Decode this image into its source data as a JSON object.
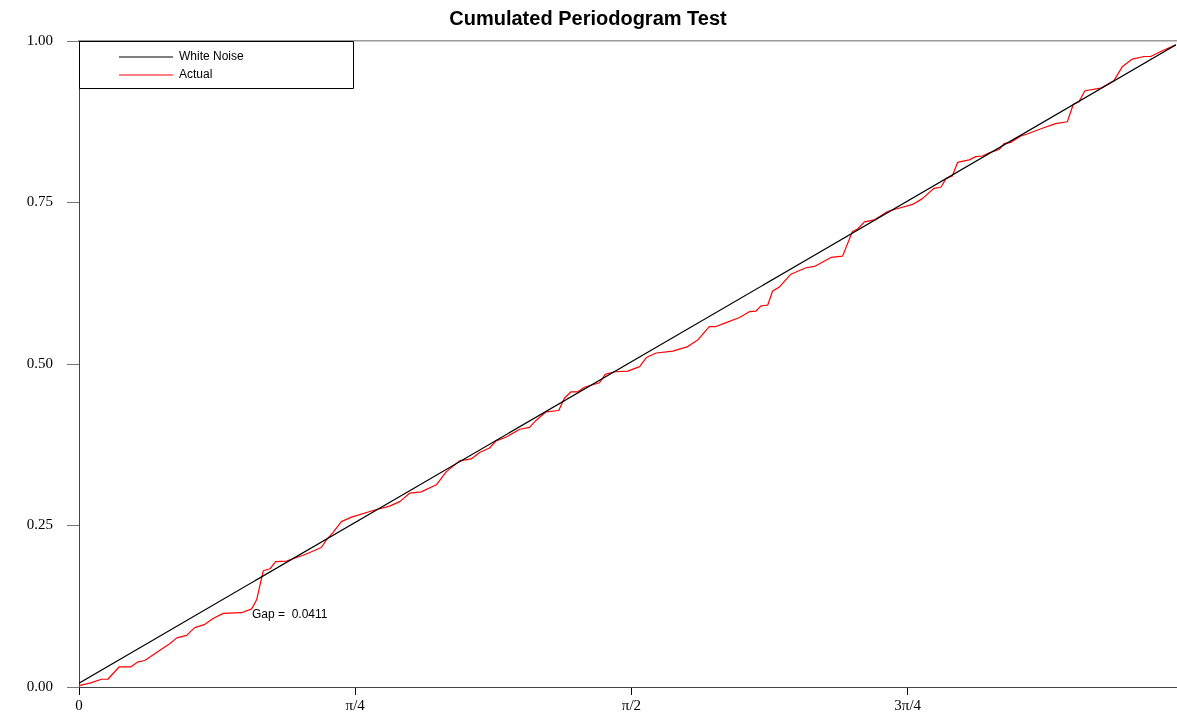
{
  "chart_data": {
    "type": "line",
    "title": "Cumulated Periodogram Test",
    "legend": "top left",
    "marker": "none",
    "line_style": "solid",
    "grid": false,
    "xlim": [
      0,
      3.119
    ],
    "ylim": [
      0,
      1
    ],
    "xticks": [
      {
        "value": 0,
        "label": "0"
      },
      {
        "value": 0.7854,
        "label": "π/4"
      },
      {
        "value": 1.5708,
        "label": "π/2"
      },
      {
        "value": 2.3562,
        "label": "3π/4"
      }
    ],
    "yticks": [
      {
        "value": 0,
        "label": "0.00"
      },
      {
        "value": 0.25,
        "label": "0.25"
      },
      {
        "value": 0.5,
        "label": "0.50"
      },
      {
        "value": 0.75,
        "label": "0.75"
      },
      {
        "value": 1,
        "label": "1.00"
      }
    ],
    "annotations": [
      "Gap =  0.0411"
    ],
    "series": [
      {
        "name": "White Noise",
        "color": "#000000",
        "x": [
          0,
          3.119
        ],
        "values": [
          0.006,
          0.994
        ]
      },
      {
        "name": "Actual",
        "color": "#ff0000",
        "x": [
          0,
          0.031,
          0.064,
          0.082,
          0.114,
          0.147,
          0.168,
          0.187,
          0.23,
          0.258,
          0.278,
          0.306,
          0.329,
          0.358,
          0.381,
          0.41,
          0.462,
          0.491,
          0.505,
          0.524,
          0.543,
          0.559,
          0.59,
          0.637,
          0.651,
          0.689,
          0.704,
          0.722,
          0.746,
          0.775,
          0.841,
          0.883,
          0.912,
          0.94,
          0.973,
          1.016,
          1.044,
          1.082,
          1.115,
          1.139,
          1.167,
          1.186,
          1.215,
          1.253,
          1.281,
          1.3,
          1.328,
          1.364,
          1.38,
          1.399,
          1.418,
          1.437,
          1.48,
          1.496,
          1.523,
          1.56,
          1.594,
          1.613,
          1.641,
          1.688,
          1.731,
          1.759,
          1.792,
          1.811,
          1.84,
          1.878,
          1.906,
          1.925,
          1.939,
          1.958,
          1.972,
          1.991,
          2.024,
          2.067,
          2.091,
          2.138,
          2.171,
          2.199,
          2.214,
          2.233,
          2.261,
          2.299,
          2.323,
          2.37,
          2.398,
          2.431,
          2.451,
          2.465,
          2.483,
          2.498,
          2.531,
          2.55,
          2.569,
          2.588,
          2.616,
          2.63,
          2.649,
          2.678,
          2.696,
          2.739,
          2.777,
          2.81,
          2.827,
          2.843,
          2.86,
          2.905,
          2.943,
          2.966,
          2.995,
          3.028,
          3.047,
          3.08,
          3.119
        ],
        "values": [
          0.002,
          0.006,
          0.012,
          0.012,
          0.031,
          0.031,
          0.039,
          0.041,
          0.057,
          0.067,
          0.076,
          0.08,
          0.092,
          0.097,
          0.106,
          0.114,
          0.115,
          0.121,
          0.135,
          0.18,
          0.183,
          0.194,
          0.195,
          0.204,
          0.207,
          0.216,
          0.228,
          0.239,
          0.256,
          0.263,
          0.274,
          0.28,
          0.287,
          0.3,
          0.302,
          0.313,
          0.333,
          0.35,
          0.353,
          0.363,
          0.37,
          0.381,
          0.387,
          0.399,
          0.402,
          0.413,
          0.426,
          0.428,
          0.447,
          0.457,
          0.457,
          0.464,
          0.471,
          0.484,
          0.488,
          0.489,
          0.496,
          0.51,
          0.517,
          0.52,
          0.527,
          0.537,
          0.558,
          0.558,
          0.564,
          0.572,
          0.581,
          0.582,
          0.59,
          0.591,
          0.613,
          0.619,
          0.639,
          0.649,
          0.651,
          0.665,
          0.667,
          0.705,
          0.709,
          0.72,
          0.723,
          0.736,
          0.74,
          0.747,
          0.756,
          0.772,
          0.774,
          0.787,
          0.791,
          0.812,
          0.816,
          0.821,
          0.822,
          0.827,
          0.832,
          0.841,
          0.843,
          0.853,
          0.856,
          0.865,
          0.872,
          0.875,
          0.902,
          0.906,
          0.923,
          0.927,
          0.939,
          0.96,
          0.972,
          0.976,
          0.976,
          0.985,
          0.994
        ]
      }
    ]
  }
}
